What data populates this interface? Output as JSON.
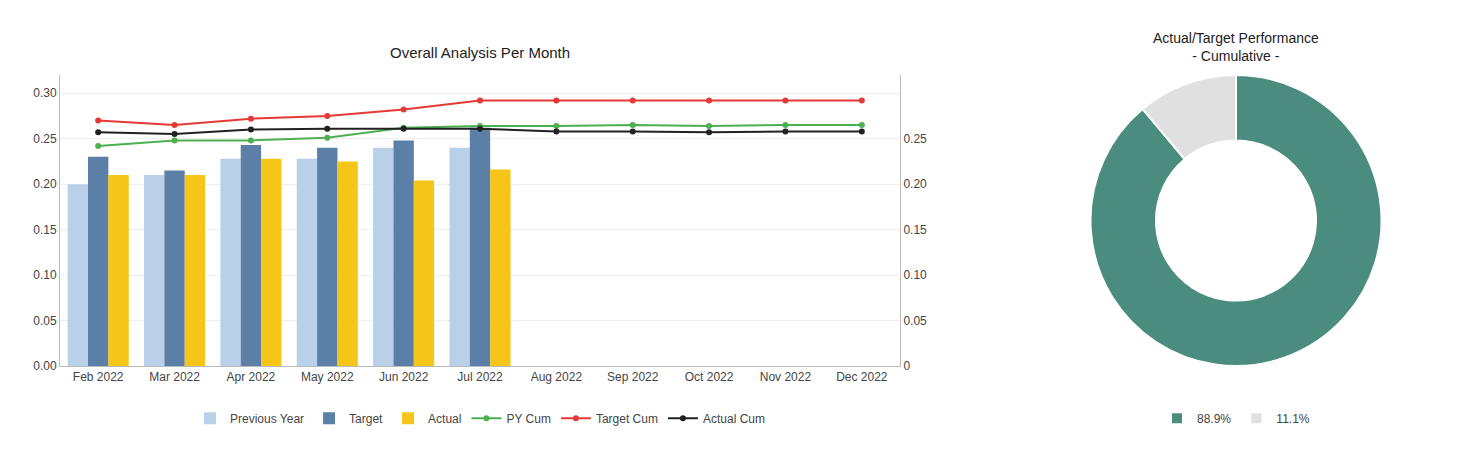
{
  "chart_data": [
    {
      "type": "bar",
      "title": "Overall Analysis Per Month",
      "categories": [
        "Feb 2022",
        "Mar 2022",
        "Apr 2022",
        "May 2022",
        "Jun 2022",
        "Jul 2022",
        "Aug 2022",
        "Sep 2022",
        "Oct 2022",
        "Nov 2022",
        "Dec 2022"
      ],
      "series": [
        {
          "name": "Previous Year",
          "type": "bar",
          "color": "#b8d0e8",
          "values": [
            0.2,
            0.21,
            0.228,
            0.228,
            0.24,
            0.24,
            null,
            null,
            null,
            null,
            null
          ]
        },
        {
          "name": "Target",
          "type": "bar",
          "color": "#5b7fa6",
          "values": [
            0.23,
            0.215,
            0.243,
            0.24,
            0.248,
            0.262,
            null,
            null,
            null,
            null,
            null
          ]
        },
        {
          "name": "Actual",
          "type": "bar",
          "color": "#f5c518",
          "values": [
            0.21,
            0.21,
            0.228,
            0.225,
            0.204,
            0.216,
            null,
            null,
            null,
            null,
            null
          ]
        },
        {
          "name": "PY Cum",
          "type": "line",
          "color": "#4caf50",
          "marker": "circle",
          "line_style": "solid",
          "values": [
            0.242,
            0.248,
            0.248,
            0.251,
            0.262,
            0.264,
            0.264,
            0.265,
            0.264,
            0.265,
            0.265
          ]
        },
        {
          "name": "Target Cum",
          "type": "line",
          "color": "#e53935",
          "marker": "circle",
          "line_style": "solid",
          "values": [
            0.27,
            0.265,
            0.272,
            0.275,
            0.282,
            0.292,
            0.292,
            0.292,
            0.292,
            0.292,
            0.292
          ]
        },
        {
          "name": "Actual Cum",
          "type": "line",
          "color": "#212121",
          "marker": "circle",
          "line_style": "solid",
          "values": [
            0.257,
            0.255,
            0.26,
            0.261,
            0.261,
            0.261,
            0.258,
            0.258,
            0.257,
            0.258,
            0.258
          ]
        }
      ],
      "ylim": [
        0.0,
        0.32
      ],
      "yticks": [
        {
          "value": 0,
          "label": "0.00"
        },
        0.05,
        {
          "value": 0.1,
          "label": "0.10"
        },
        0.15,
        {
          "value": 0.2,
          "label": "0.20"
        },
        0.25,
        {
          "value": 0.3,
          "label": "0.30"
        }
      ],
      "y2lim": [
        0.0,
        0.32
      ],
      "y2ticks": [
        0,
        0.05,
        {
          "value": 0.1,
          "label": "0.10"
        },
        0.15,
        {
          "value": 0.2,
          "label": "0.20"
        },
        0.25
      ],
      "grid": true,
      "legend": "bottom"
    },
    {
      "type": "donut",
      "title": "Actual/Target Performance\n- Cumulative -",
      "categories": [
        "88.9%",
        "11.1%"
      ],
      "values": [
        88.9,
        11.1
      ],
      "colors": [
        "#4a8c7e",
        "#e0e0e0"
      ],
      "legend": "bottom"
    }
  ]
}
